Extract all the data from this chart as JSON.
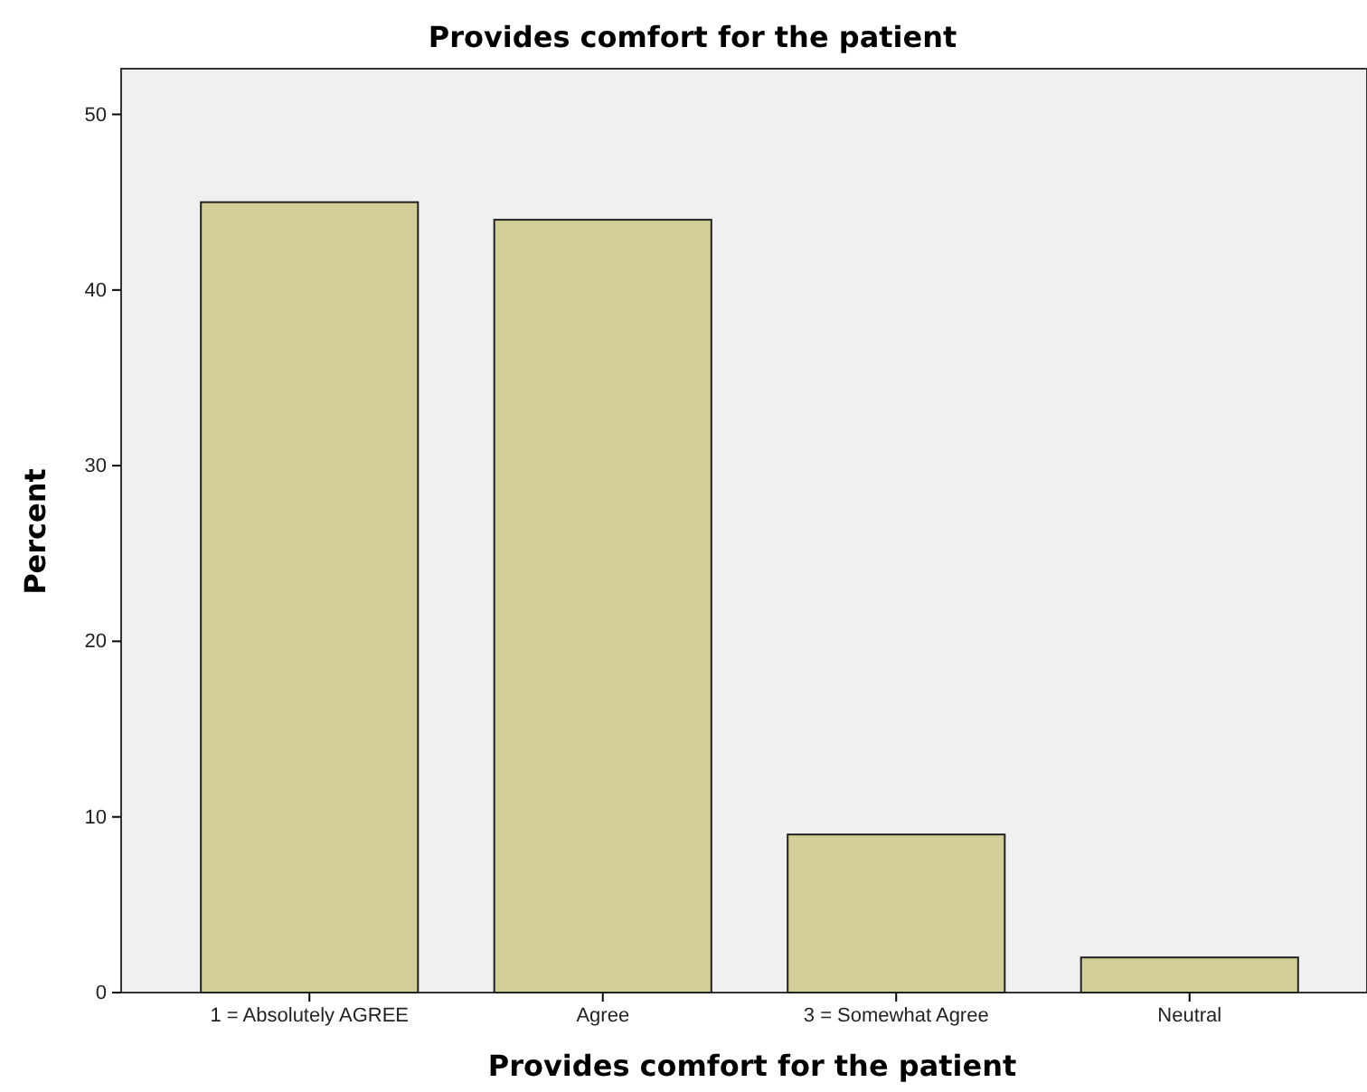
{
  "chart_data": {
    "type": "bar",
    "title": "Provides comfort for the patient",
    "xlabel": "Provides comfort for the patient",
    "ylabel": "Percent",
    "categories": [
      "1 = Absolutely AGREE",
      "Agree",
      "3 = Somewhat Agree",
      "Neutral"
    ],
    "values": [
      45,
      44,
      9,
      2
    ],
    "color": "#d3ce97",
    "ylim": [
      0,
      52.6
    ],
    "yticks": [
      0,
      10,
      20,
      30,
      40,
      50
    ],
    "grid": false
  }
}
